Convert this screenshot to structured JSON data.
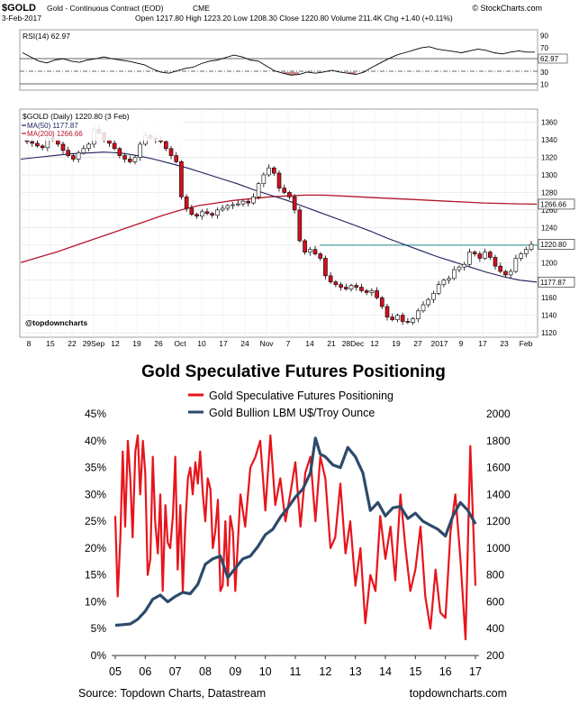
{
  "header": {
    "symbol": "$GOLD",
    "name": "Gold - Continuous Contract (EOD)",
    "exchange": "CME",
    "date": "3-Feb-2017",
    "ohlc_line": "Open 1217.80  High 1223.20  Low 1208.30  Close 1220.80  Volume 211.4K  Chg +1.40 (+0.11%)",
    "watermark": "© StockCharts.com"
  },
  "chart_data": [
    {
      "type": "line",
      "title": "RSI(14) 62.97",
      "ylim": [
        0,
        100
      ],
      "y_ticks": [
        "90",
        "70",
        "50",
        "30",
        "10"
      ],
      "current_value_label": "62.97",
      "reference_levels": [
        70,
        50,
        30
      ],
      "series": [
        {
          "values": [
            62,
            55,
            48,
            45,
            50,
            52,
            48,
            46,
            50,
            52,
            55,
            52,
            50,
            48,
            45,
            42,
            35,
            30,
            28,
            32,
            36,
            38,
            44,
            48,
            50,
            54,
            58,
            55,
            50,
            48,
            40,
            32,
            28,
            25,
            26,
            30,
            28,
            30,
            33,
            30,
            28,
            26,
            30,
            38,
            45,
            52,
            58,
            62,
            66,
            70,
            72,
            68,
            66,
            64,
            62,
            65,
            68,
            66,
            62,
            60,
            63,
            65,
            63,
            62.97
          ]
        }
      ]
    },
    {
      "type": "candlestick",
      "title": "$GOLD (Daily) 1220.80 (3 Feb)",
      "legend": [
        "MA(50) 1177.87",
        "MA(200) 1266.66"
      ],
      "volume_legend": "Volume 211,409",
      "ylim": [
        1115,
        1375
      ],
      "y_ticks": [
        1360,
        1340,
        1320,
        1300,
        1280,
        1260,
        1240,
        1220,
        1200,
        1180,
        1160,
        1140,
        1120
      ],
      "x_ticks": [
        "8",
        "15",
        "22",
        "29Sep",
        "12",
        "19",
        "26",
        "Oct",
        "10",
        "17",
        "24",
        "Nov",
        "7",
        "14",
        "21",
        "28Dec",
        "12",
        "19",
        "27",
        "2017",
        "9",
        "17",
        "23",
        "Feb"
      ],
      "price_labels": [
        "1266.66",
        "1220.80",
        "1177.87"
      ],
      "resistance_level": 1220,
      "closes": [
        1338,
        1336,
        1333,
        1331,
        1342,
        1340,
        1335,
        1328,
        1322,
        1318,
        1325,
        1330,
        1335,
        1352,
        1348,
        1340,
        1336,
        1330,
        1322,
        1318,
        1315,
        1320,
        1335,
        1345,
        1342,
        1340,
        1338,
        1330,
        1322,
        1315,
        1275,
        1262,
        1255,
        1253,
        1258,
        1256,
        1254,
        1260,
        1262,
        1265,
        1266,
        1267,
        1270,
        1268,
        1275,
        1290,
        1300,
        1308,
        1302,
        1285,
        1280,
        1275,
        1260,
        1225,
        1212,
        1215,
        1210,
        1205,
        1185,
        1178,
        1175,
        1172,
        1170,
        1174,
        1172,
        1168,
        1166,
        1168,
        1160,
        1150,
        1138,
        1135,
        1140,
        1133,
        1132,
        1136,
        1145,
        1152,
        1158,
        1165,
        1175,
        1180,
        1182,
        1192,
        1195,
        1198,
        1212,
        1210,
        1205,
        1212,
        1206,
        1196,
        1190,
        1186,
        1190,
        1205,
        1210,
        1215,
        1220.8
      ],
      "ma50": [
        1318,
        1320,
        1322,
        1324,
        1325,
        1326,
        1325,
        1322,
        1318,
        1313,
        1308,
        1302,
        1296,
        1290,
        1283,
        1277,
        1271,
        1264,
        1257,
        1250,
        1243,
        1236,
        1228,
        1221,
        1214,
        1207,
        1201,
        1195,
        1189,
        1184,
        1180,
        1177.87
      ],
      "ma200": [
        1200,
        1206,
        1212,
        1219,
        1226,
        1233,
        1240,
        1247,
        1254,
        1260,
        1265,
        1268,
        1271,
        1273,
        1275,
        1276,
        1277,
        1277,
        1276,
        1275,
        1274,
        1273,
        1272,
        1271,
        1270,
        1269,
        1268,
        1267.5,
        1267,
        1266.66
      ],
      "watermark": "@topdowncharts"
    },
    {
      "type": "line",
      "title": "Gold Speculative Futures Positioning",
      "legend": [
        "Gold Speculative Futures Positioning",
        "Gold Bullion LBM U$/Troy Ounce"
      ],
      "x_ticks": [
        "05",
        "06",
        "07",
        "08",
        "09",
        "10",
        "11",
        "12",
        "13",
        "14",
        "15",
        "16",
        "17"
      ],
      "y_left": {
        "ticks": [
          "45%",
          "40%",
          "35%",
          "30%",
          "25%",
          "20%",
          "15%",
          "10%",
          "5%",
          "0%"
        ],
        "ylim": [
          0,
          45
        ]
      },
      "y_right": {
        "ticks": [
          "2000",
          "1800",
          "1600",
          "1400",
          "1200",
          "1000",
          "800",
          "600",
          "400",
          "200"
        ],
        "ylim": [
          200,
          2000
        ]
      },
      "series": [
        {
          "name": "Gold Speculative Futures Positioning",
          "axis": "left",
          "color": "#e8141b",
          "x": [
            2005.0,
            2005.08,
            2005.17,
            2005.25,
            2005.33,
            2005.42,
            2005.5,
            2005.58,
            2005.67,
            2005.75,
            2005.83,
            2005.92,
            2006.0,
            2006.08,
            2006.17,
            2006.25,
            2006.33,
            2006.42,
            2006.5,
            2006.58,
            2006.67,
            2006.75,
            2006.83,
            2006.92,
            2007.0,
            2007.08,
            2007.17,
            2007.25,
            2007.33,
            2007.42,
            2007.5,
            2007.58,
            2007.67,
            2007.75,
            2007.83,
            2007.92,
            2008.0,
            2008.08,
            2008.17,
            2008.25,
            2008.33,
            2008.42,
            2008.5,
            2008.58,
            2008.67,
            2008.75,
            2008.83,
            2008.92,
            2009.0,
            2009.17,
            2009.33,
            2009.5,
            2009.67,
            2009.83,
            2010.0,
            2010.17,
            2010.33,
            2010.5,
            2010.67,
            2010.83,
            2011.0,
            2011.17,
            2011.33,
            2011.5,
            2011.67,
            2011.83,
            2012.0,
            2012.17,
            2012.33,
            2012.5,
            2012.67,
            2012.83,
            2013.0,
            2013.17,
            2013.33,
            2013.5,
            2013.67,
            2013.83,
            2014.0,
            2014.17,
            2014.33,
            2014.5,
            2014.67,
            2014.83,
            2015.0,
            2015.17,
            2015.33,
            2015.5,
            2015.67,
            2015.83,
            2016.0,
            2016.17,
            2016.33,
            2016.5,
            2016.67,
            2016.83,
            2017.0
          ],
          "values": [
            26,
            11,
            22,
            38,
            24,
            40,
            33,
            22,
            38,
            41,
            30,
            40,
            34,
            15,
            18,
            37,
            25,
            19,
            30,
            12,
            28,
            21,
            20,
            26,
            37,
            16,
            28,
            12,
            24,
            33,
            35,
            30,
            36,
            32,
            38,
            30,
            25,
            33,
            31,
            20,
            23,
            29,
            12,
            13,
            25,
            13,
            26,
            23,
            12,
            30,
            24,
            35,
            37,
            40,
            27,
            41,
            28,
            33,
            25,
            30,
            36,
            24,
            34,
            37,
            25,
            37,
            33,
            20,
            22,
            32,
            19,
            25,
            13,
            20,
            6,
            15,
            12,
            26,
            18,
            24,
            14,
            30,
            20,
            12,
            16,
            24,
            11,
            5,
            16,
            8,
            7,
            23,
            30,
            18,
            3,
            39,
            13
          ]
        },
        {
          "name": "Gold Bullion LBM U$/Troy Ounce",
          "axis": "right",
          "color": "#2e4a6b",
          "x": [
            2005.0,
            2005.25,
            2005.5,
            2005.75,
            2006.0,
            2006.25,
            2006.5,
            2006.75,
            2007.0,
            2007.25,
            2007.5,
            2007.75,
            2008.0,
            2008.25,
            2008.5,
            2008.75,
            2009.0,
            2009.25,
            2009.5,
            2009.75,
            2010.0,
            2010.25,
            2010.5,
            2010.75,
            2011.0,
            2011.25,
            2011.5,
            2011.67,
            2011.83,
            2012.0,
            2012.25,
            2012.5,
            2012.75,
            2013.0,
            2013.25,
            2013.5,
            2013.75,
            2014.0,
            2014.25,
            2014.5,
            2014.75,
            2015.0,
            2015.25,
            2015.5,
            2015.75,
            2016.0,
            2016.25,
            2016.5,
            2016.75,
            2017.0
          ],
          "values": [
            425,
            430,
            435,
            470,
            530,
            620,
            650,
            600,
            640,
            670,
            660,
            730,
            880,
            920,
            940,
            780,
            850,
            920,
            940,
            1010,
            1100,
            1140,
            1230,
            1300,
            1380,
            1440,
            1560,
            1820,
            1700,
            1680,
            1620,
            1600,
            1750,
            1680,
            1560,
            1280,
            1340,
            1240,
            1300,
            1310,
            1220,
            1260,
            1200,
            1170,
            1140,
            1090,
            1240,
            1340,
            1280,
            1180
          ]
        }
      ],
      "source": "Source: Topdown Charts, Datastream",
      "credit": "topdowncharts.com"
    }
  ]
}
